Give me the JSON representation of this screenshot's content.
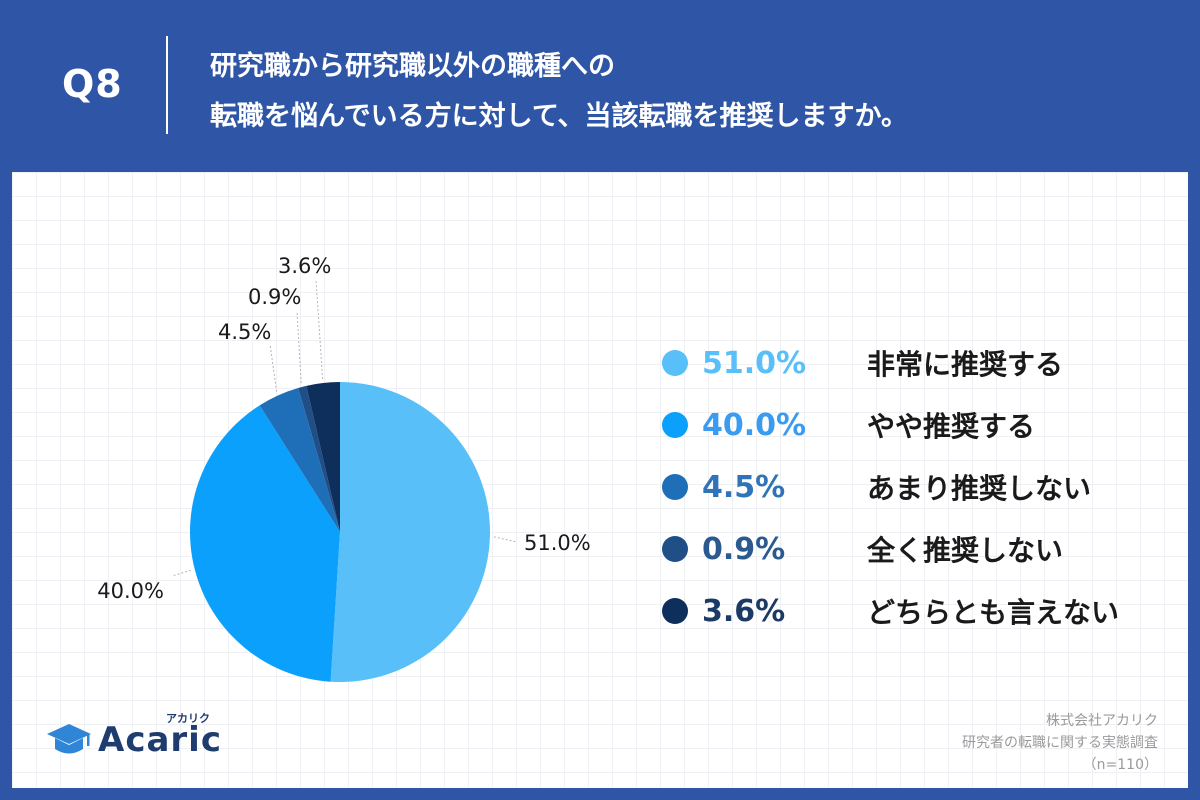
{
  "header": {
    "q_label": "Q8",
    "question_line1": "研究職から研究職以外の職種への",
    "question_line2": "転職を悩んでいる方に対して、当該転職を推奨しますか。"
  },
  "chart_data": {
    "type": "pie",
    "title": "",
    "categories": [
      "非常に推奨する",
      "やや推奨する",
      "あまり推奨しない",
      "全く推奨しない",
      "どちらとも言えない"
    ],
    "values": [
      51.0,
      40.0,
      4.5,
      0.9,
      3.6
    ],
    "value_labels": [
      "51.0%",
      "40.0%",
      "4.5%",
      "0.9%",
      "3.6%"
    ],
    "colors": [
      "#58bff9",
      "#0ba0fb",
      "#1e6fb8",
      "#1f4f86",
      "#0e2f5c"
    ],
    "legend_text_colors": [
      "#58bff9",
      "#3a9bf0",
      "#2f74b8",
      "#2a5a90",
      "#1c3a66"
    ],
    "legend_position": "right",
    "start_angle": "top",
    "direction": "clockwise"
  },
  "logo": {
    "text": "Acaric",
    "kana": "アカリク"
  },
  "source": {
    "line1": "株式会社アカリク",
    "line2": "研究者の転職に関する実態調査",
    "line3": "（n=110）"
  },
  "icons": {
    "logo": "graduation-cap-icon",
    "legend_marker": "circle-icon"
  }
}
